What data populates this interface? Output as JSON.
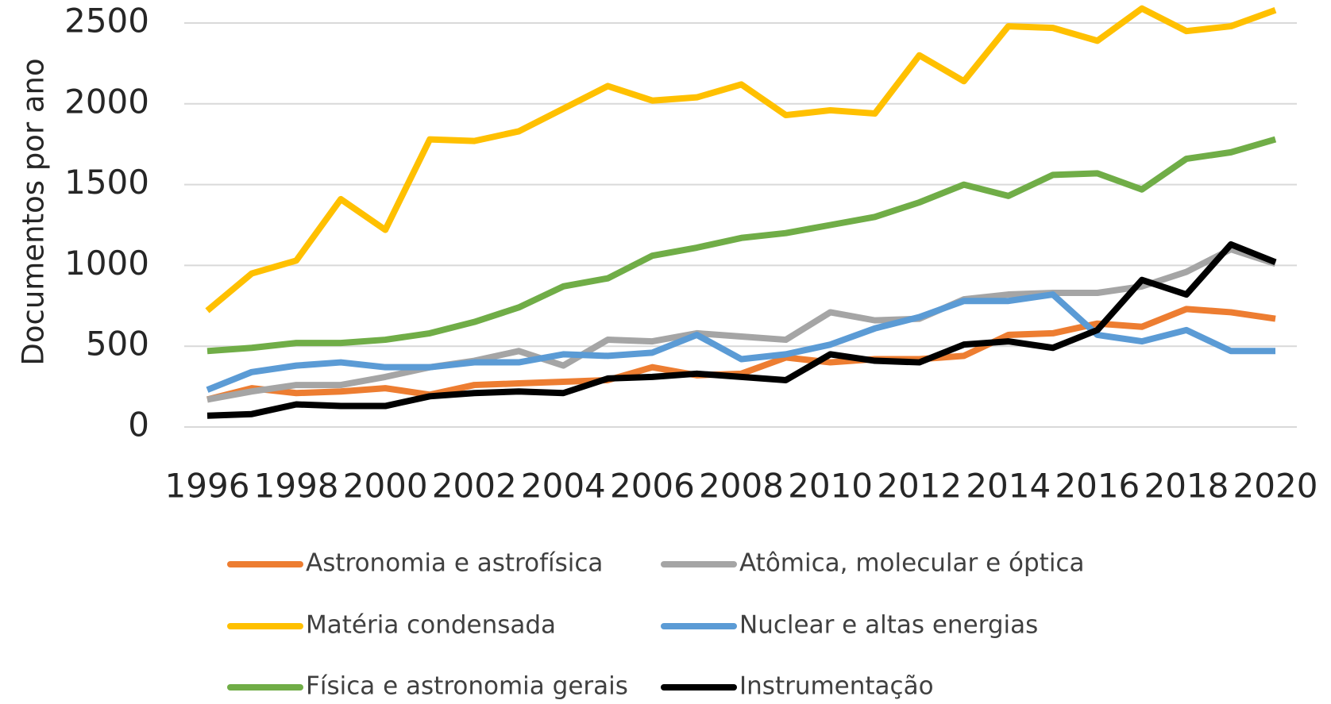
{
  "chart_data": {
    "type": "line",
    "y_label": "Documentos por ano",
    "x": [
      1996,
      1997,
      1998,
      1999,
      2000,
      2001,
      2002,
      2003,
      2004,
      2005,
      2006,
      2007,
      2008,
      2009,
      2010,
      2011,
      2012,
      2013,
      2014,
      2015,
      2016,
      2017,
      2018,
      2019,
      2020
    ],
    "xlim": [
      1996,
      2020
    ],
    "xticks": [
      1996,
      1998,
      2000,
      2002,
      2004,
      2006,
      2008,
      2010,
      2012,
      2014,
      2016,
      2018,
      2020
    ],
    "ylim": [
      0,
      2500
    ],
    "yticks": [
      0,
      500,
      1000,
      1500,
      2000,
      2500
    ],
    "grid": true,
    "legend": "bottom",
    "series": [
      {
        "name": "Astronomia e astrofísica",
        "color": "#ed7d31",
        "values": [
          170,
          240,
          210,
          220,
          240,
          200,
          260,
          270,
          280,
          290,
          370,
          320,
          330,
          430,
          400,
          420,
          420,
          440,
          570,
          580,
          640,
          620,
          730,
          710,
          670
        ]
      },
      {
        "name": "Atômica, molecular e óptica",
        "color": "#a5a5a5",
        "values": [
          170,
          220,
          260,
          260,
          310,
          370,
          410,
          470,
          380,
          540,
          530,
          580,
          560,
          540,
          710,
          660,
          670,
          790,
          820,
          830,
          830,
          870,
          960,
          1100,
          1010
        ]
      },
      {
        "name": "Matéria condensada",
        "color": "#ffc000",
        "values": [
          720,
          950,
          1030,
          1410,
          1220,
          1780,
          1770,
          1830,
          1970,
          2110,
          2020,
          2040,
          2120,
          1930,
          1960,
          1940,
          2300,
          2140,
          2480,
          2470,
          2390,
          2590,
          2450,
          2480,
          2580
        ]
      },
      {
        "name": "Nuclear e altas energias",
        "color": "#5b9bd5",
        "values": [
          230,
          340,
          380,
          400,
          370,
          370,
          400,
          400,
          450,
          440,
          460,
          570,
          420,
          450,
          510,
          610,
          680,
          780,
          780,
          820,
          570,
          530,
          600,
          470,
          470
        ]
      },
      {
        "name": "Física e astronomia gerais",
        "color": "#70ad47",
        "values": [
          470,
          490,
          520,
          520,
          540,
          580,
          650,
          740,
          870,
          920,
          1060,
          1110,
          1170,
          1200,
          1250,
          1300,
          1390,
          1500,
          1430,
          1560,
          1570,
          1470,
          1660,
          1700,
          1780
        ]
      },
      {
        "name": "Instrumentação",
        "color": "#000000",
        "values": [
          70,
          80,
          140,
          130,
          130,
          190,
          210,
          220,
          210,
          300,
          310,
          330,
          310,
          290,
          450,
          410,
          400,
          510,
          530,
          490,
          600,
          910,
          820,
          1130,
          1020
        ]
      }
    ]
  }
}
